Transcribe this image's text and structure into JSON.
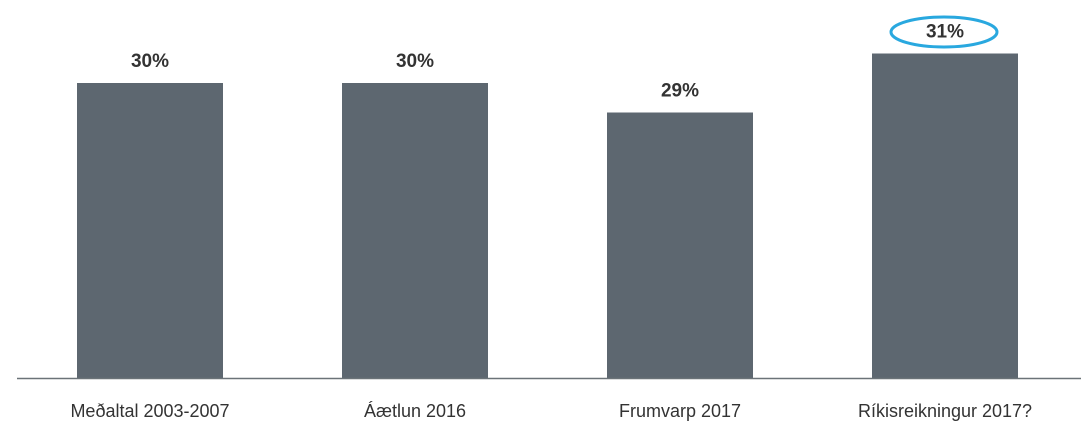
{
  "chart_data": {
    "type": "bar",
    "categories": [
      "Meðaltal 2003-2007",
      "Áætlun 2016",
      "Frumvarp 2017",
      "Ríkisreikningur 2017?"
    ],
    "values": [
      30,
      30,
      29,
      31
    ],
    "value_labels": [
      "30%",
      "30%",
      "29%",
      "31%"
    ],
    "color": "#5d6770",
    "ylim": [
      20,
      32
    ]
  }
}
